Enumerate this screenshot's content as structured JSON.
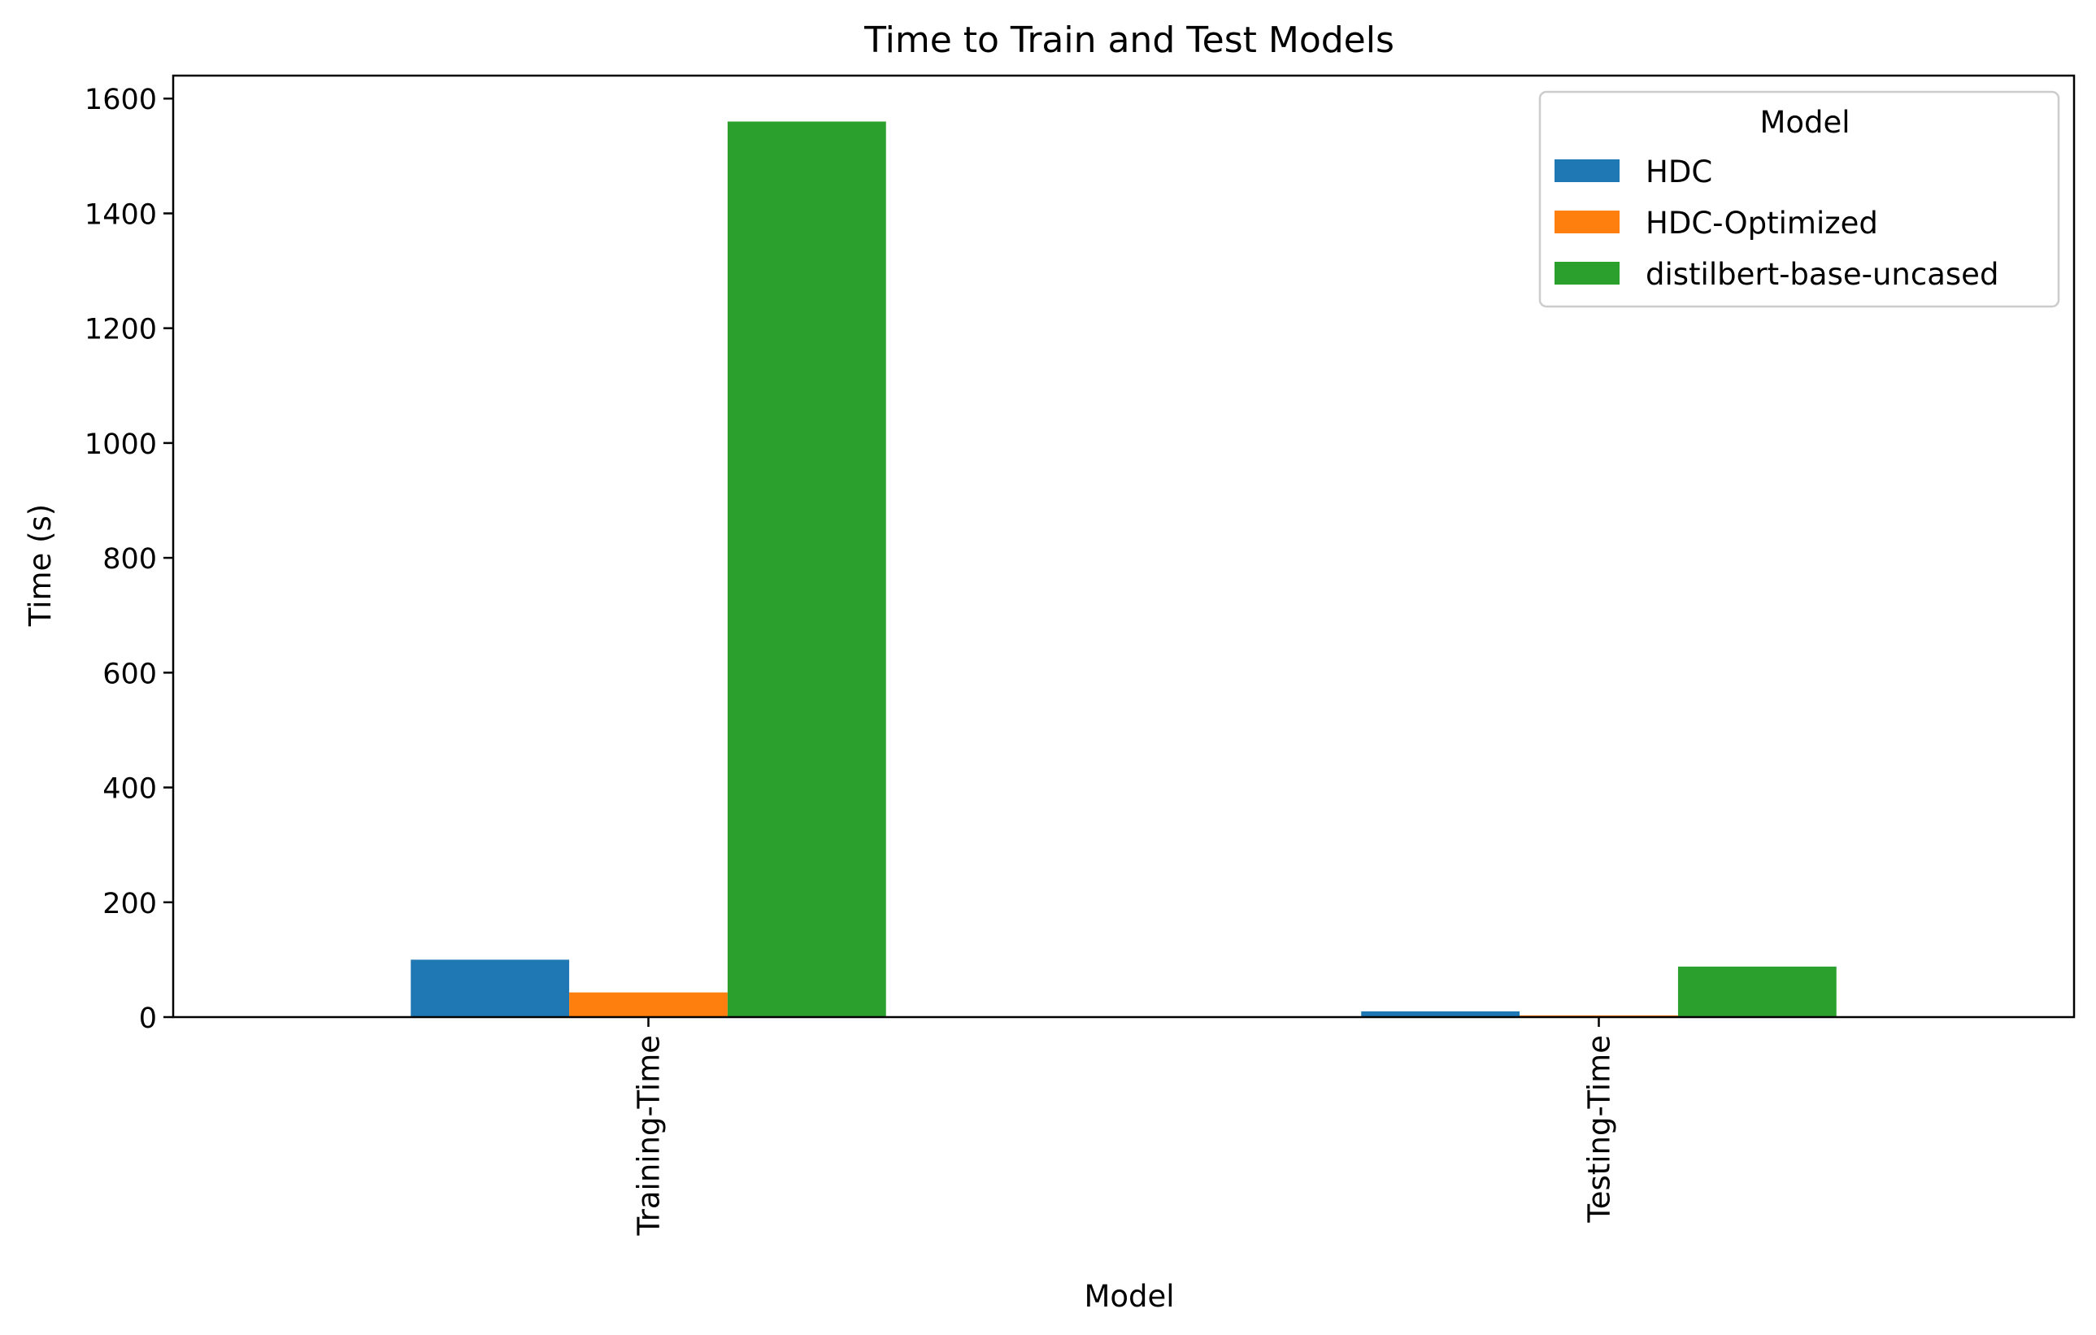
{
  "chart_data": {
    "type": "bar",
    "title": "Time to Train and Test Models",
    "xlabel": "Model",
    "ylabel": "Time (s)",
    "categories": [
      "Training-Time",
      "Testing-Time"
    ],
    "series": [
      {
        "name": "HDC",
        "color": "#1f77b4",
        "values": [
          100,
          10
        ]
      },
      {
        "name": "HDC-Optimized",
        "color": "#ff7f0e",
        "values": [
          43,
          3
        ]
      },
      {
        "name": "distilbert-base-uncased",
        "color": "#2ca02c",
        "values": [
          1560,
          88
        ]
      }
    ],
    "ylim": [
      0,
      1640
    ],
    "yticks": [
      0,
      200,
      400,
      600,
      800,
      1000,
      1200,
      1400,
      1600
    ],
    "legend": {
      "title": "Model",
      "position": "top-right"
    },
    "grid": false
  }
}
